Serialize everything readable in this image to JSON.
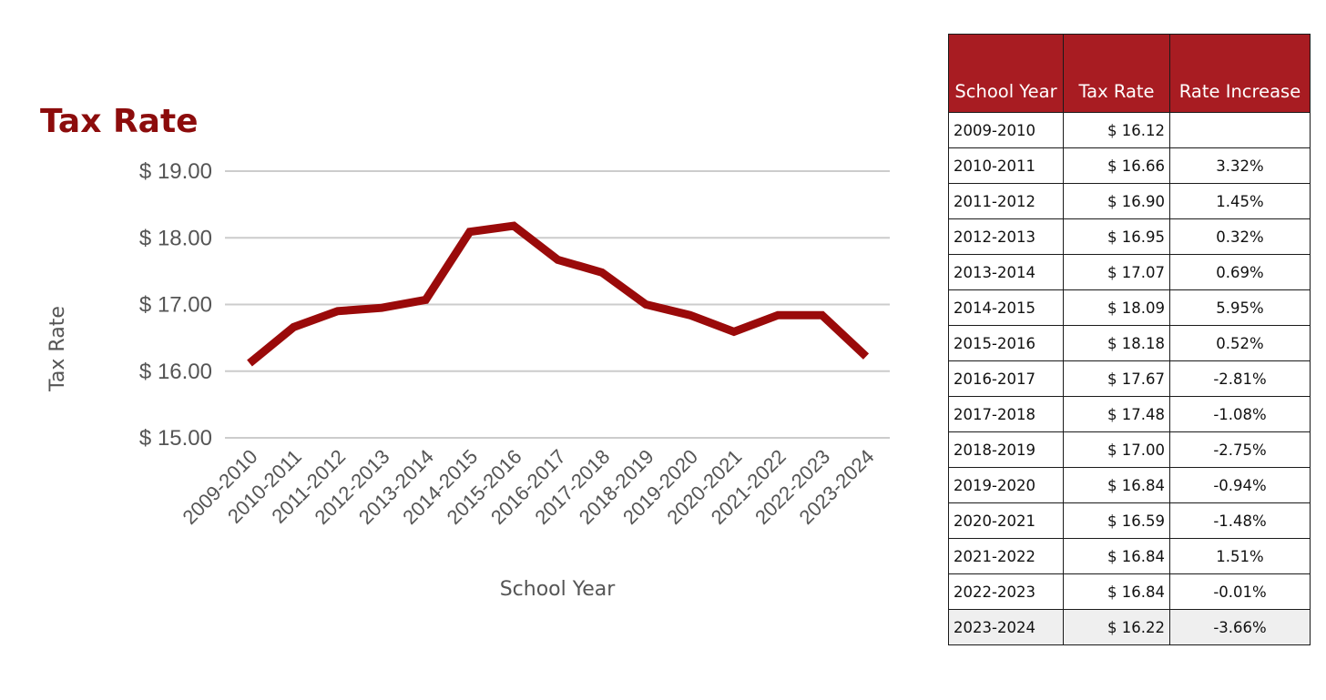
{
  "chart_data": {
    "type": "line",
    "title": "Tax Rate",
    "xlabel": "School Year",
    "ylabel": "Tax Rate",
    "ylim": [
      15,
      19
    ],
    "yticks": [
      "$ 15.00",
      "$ 16.00",
      "$ 17.00",
      "$ 18.00",
      "$ 19.00"
    ],
    "grid": true,
    "legend": "none",
    "line_color": "#9a0a0a",
    "categories": [
      "2009-2010",
      "2010-2011",
      "2011-2012",
      "2012-2013",
      "2013-2014",
      "2014-2015",
      "2015-2016",
      "2016-2017",
      "2017-2018",
      "2018-2019",
      "2019-2020",
      "2020-2021",
      "2021-2022",
      "2022-2023",
      "2023-2024"
    ],
    "series": [
      {
        "values": [
          16.12,
          16.66,
          16.9,
          16.95,
          17.07,
          18.09,
          18.18,
          17.67,
          17.48,
          17.0,
          16.84,
          16.59,
          16.84,
          16.84,
          16.22
        ]
      }
    ]
  },
  "table": {
    "header_color": "#a81c22",
    "headers": [
      "School Year",
      "Tax Rate",
      "Rate Increase"
    ],
    "rows": [
      {
        "year": "2009-2010",
        "rate": "$ 16.12",
        "increase": ""
      },
      {
        "year": "2010-2011",
        "rate": "$ 16.66",
        "increase": "3.32%"
      },
      {
        "year": "2011-2012",
        "rate": "$ 16.90",
        "increase": "1.45%"
      },
      {
        "year": "2012-2013",
        "rate": "$ 16.95",
        "increase": "0.32%"
      },
      {
        "year": "2013-2014",
        "rate": "$ 17.07",
        "increase": "0.69%"
      },
      {
        "year": "2014-2015",
        "rate": "$ 18.09",
        "increase": "5.95%"
      },
      {
        "year": "2015-2016",
        "rate": "$ 18.18",
        "increase": "0.52%"
      },
      {
        "year": "2016-2017",
        "rate": "$ 17.67",
        "increase": "-2.81%"
      },
      {
        "year": "2017-2018",
        "rate": "$ 17.48",
        "increase": "-1.08%"
      },
      {
        "year": "2018-2019",
        "rate": "$ 17.00",
        "increase": "-2.75%"
      },
      {
        "year": "2019-2020",
        "rate": "$ 16.84",
        "increase": "-0.94%"
      },
      {
        "year": "2020-2021",
        "rate": "$ 16.59",
        "increase": "-1.48%"
      },
      {
        "year": "2021-2022",
        "rate": "$ 16.84",
        "increase": "1.51%"
      },
      {
        "year": "2022-2023",
        "rate": "$ 16.84",
        "increase": "-0.01%"
      },
      {
        "year": "2023-2024",
        "rate": "$ 16.22",
        "increase": "-3.66%"
      }
    ]
  }
}
